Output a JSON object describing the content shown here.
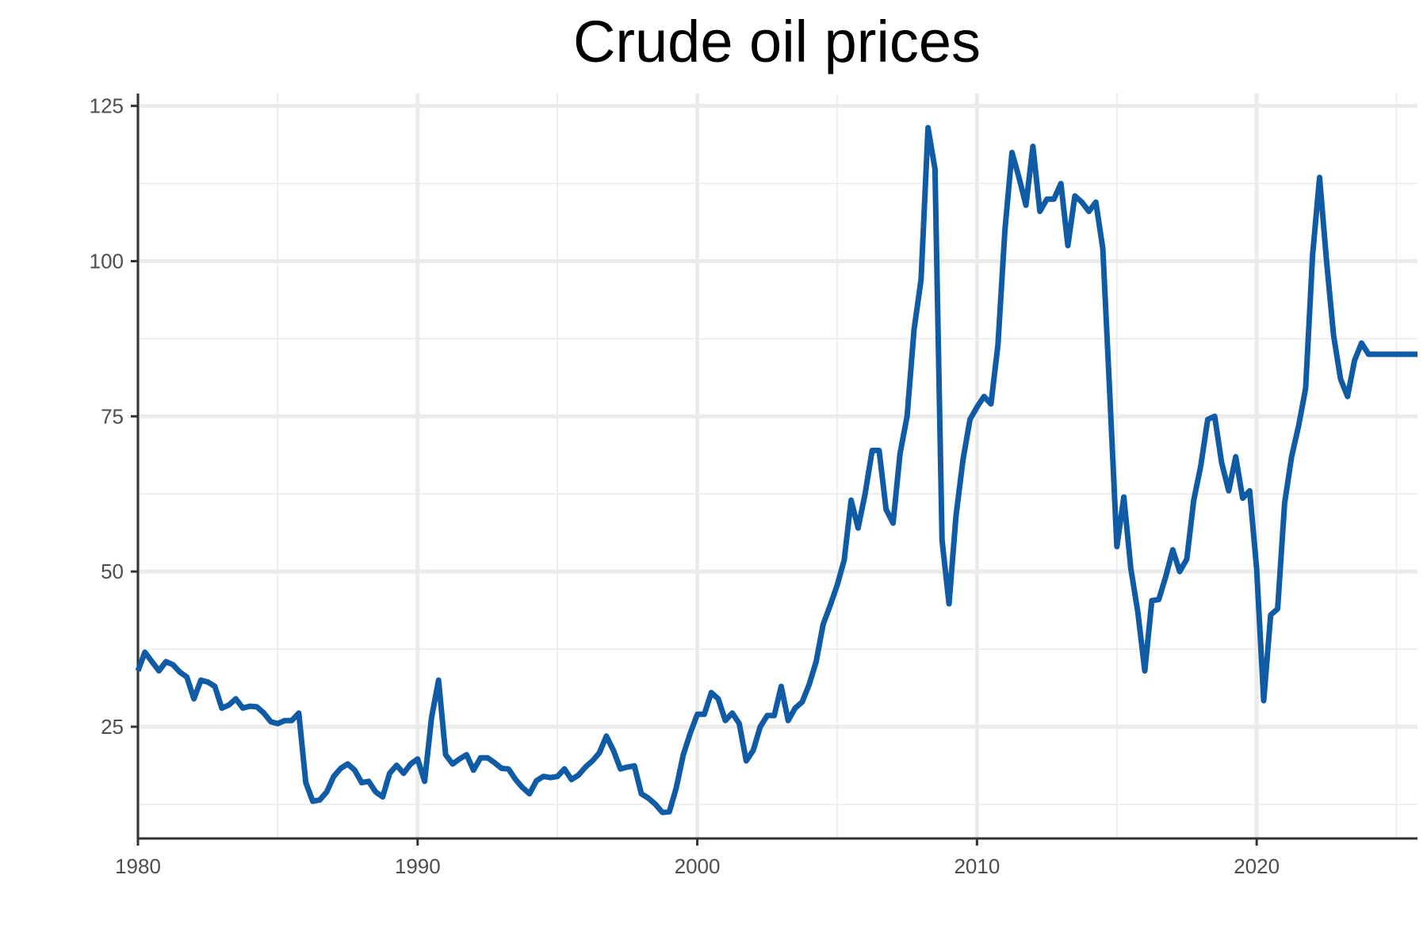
{
  "chart_data": {
    "type": "line",
    "title": "Crude oil prices",
    "xlabel": "",
    "ylabel": "",
    "xlim": [
      1980,
      2025.75
    ],
    "ylim": [
      7,
      127
    ],
    "x_ticks": [
      1980,
      1990,
      2000,
      2010,
      2020
    ],
    "x_tick_labels": [
      "1980",
      "1990",
      "2000",
      "2010",
      "2020"
    ],
    "y_ticks": [
      25,
      50,
      75,
      100,
      125
    ],
    "y_tick_labels": [
      "25",
      "50",
      "75",
      "100",
      "125"
    ],
    "grid": true,
    "legend": "none",
    "series": [
      {
        "color": "#0f5ba6",
        "x": [
          1980,
          1980.25,
          1980.5,
          1980.75,
          1981,
          1981.25,
          1981.5,
          1981.75,
          1982,
          1982.25,
          1982.5,
          1982.75,
          1983,
          1983.25,
          1983.5,
          1983.75,
          1984,
          1984.25,
          1984.5,
          1984.75,
          1985,
          1985.25,
          1985.5,
          1985.75,
          1986,
          1986.25,
          1986.5,
          1986.75,
          1987,
          1987.25,
          1987.5,
          1987.75,
          1988,
          1988.25,
          1988.5,
          1988.75,
          1989,
          1989.25,
          1989.5,
          1989.75,
          1990,
          1990.25,
          1990.5,
          1990.75,
          1991,
          1991.25,
          1991.5,
          1991.75,
          1992,
          1992.25,
          1992.5,
          1992.75,
          1993,
          1993.25,
          1993.5,
          1993.75,
          1994,
          1994.25,
          1994.5,
          1994.75,
          1995,
          1995.25,
          1995.5,
          1995.75,
          1996,
          1996.25,
          1996.5,
          1996.75,
          1997,
          1997.25,
          1997.5,
          1997.75,
          1998,
          1998.25,
          1998.5,
          1998.75,
          1999,
          1999.25,
          1999.5,
          1999.75,
          2000,
          2000.25,
          2000.5,
          2000.75,
          2001,
          2001.25,
          2001.5,
          2001.75,
          2002,
          2002.25,
          2002.5,
          2002.75,
          2003,
          2003.25,
          2003.5,
          2003.75,
          2004,
          2004.25,
          2004.5,
          2004.75,
          2005,
          2005.25,
          2005.5,
          2005.75,
          2006,
          2006.25,
          2006.5,
          2006.75,
          2007,
          2007.25,
          2007.5,
          2007.75,
          2008,
          2008.25,
          2008.5,
          2008.75,
          2009,
          2009.25,
          2009.5,
          2009.75,
          2010,
          2010.25,
          2010.5,
          2010.75,
          2011,
          2011.25,
          2011.5,
          2011.75,
          2012,
          2012.25,
          2012.5,
          2012.75,
          2013,
          2013.25,
          2013.5,
          2013.75,
          2014,
          2014.25,
          2014.5,
          2014.75,
          2015,
          2015.25,
          2015.5,
          2015.75,
          2016,
          2016.25,
          2016.5,
          2016.75,
          2017,
          2017.25,
          2017.5,
          2017.75,
          2018,
          2018.25,
          2018.5,
          2018.75,
          2019,
          2019.25,
          2019.5,
          2019.75,
          2020,
          2020.25,
          2020.5,
          2020.75,
          2021,
          2021.25,
          2021.5,
          2021.75,
          2022,
          2022.25,
          2022.5,
          2022.75,
          2023,
          2023.25,
          2023.5,
          2023.75,
          2024,
          2024.25,
          2024.5,
          2024.75,
          2025,
          2025.25,
          2025.5,
          2025.75
        ],
        "y": [
          34,
          37,
          35.5,
          34,
          35.5,
          35,
          33.8,
          33,
          29.5,
          32.5,
          32.2,
          31.5,
          28,
          28.5,
          29.5,
          28,
          28.3,
          28.2,
          27.2,
          25.8,
          25.5,
          26,
          26,
          27.2,
          16,
          13,
          13.2,
          14.5,
          17,
          18.3,
          19,
          18,
          16,
          16.2,
          14.5,
          13.7,
          17.5,
          18.8,
          17.5,
          19,
          19.8,
          16.2,
          26.5,
          32.5,
          20.5,
          19,
          19.8,
          20.5,
          18,
          20,
          20,
          19.2,
          18.3,
          18.2,
          16.5,
          15.2,
          14.2,
          16.3,
          17,
          16.8,
          17,
          18.2,
          16.5,
          17.2,
          18.5,
          19.5,
          20.8,
          23.5,
          21.2,
          18.2,
          18.5,
          18.7,
          14.2,
          13.5,
          12.5,
          11.2,
          11.3,
          15.2,
          20.5,
          24,
          27,
          27,
          30.5,
          29.5,
          26,
          27.2,
          25.5,
          19.5,
          21.2,
          25,
          26.8,
          26.8,
          31.5,
          26,
          28,
          29,
          31.8,
          35.5,
          41.5,
          44.5,
          47.8,
          51.8,
          61.5,
          57,
          62.5,
          69.5,
          69.5,
          60,
          57.8,
          69,
          75,
          89,
          97,
          121.5,
          114.8,
          55,
          44.8,
          59,
          68,
          74.5,
          76.5,
          78.2,
          77,
          86.5,
          105,
          117.5,
          113.5,
          109,
          118.5,
          108,
          110,
          110,
          112.5,
          102.5,
          110.5,
          109.5,
          108,
          109.5,
          102,
          78.5,
          54,
          62,
          50.5,
          43.5,
          34,
          45.3,
          45.5,
          49.2,
          53.5,
          50,
          52,
          61.5,
          67,
          74.5,
          75,
          67.5,
          63,
          68.5,
          61.8,
          63,
          50.5,
          29.2,
          43,
          44,
          61,
          68.5,
          73.5,
          79.5,
          101,
          113.5,
          100,
          88,
          81,
          78.2,
          84,
          86.8,
          85,
          85,
          85,
          85,
          85,
          85,
          85,
          85
        ]
      }
    ]
  }
}
